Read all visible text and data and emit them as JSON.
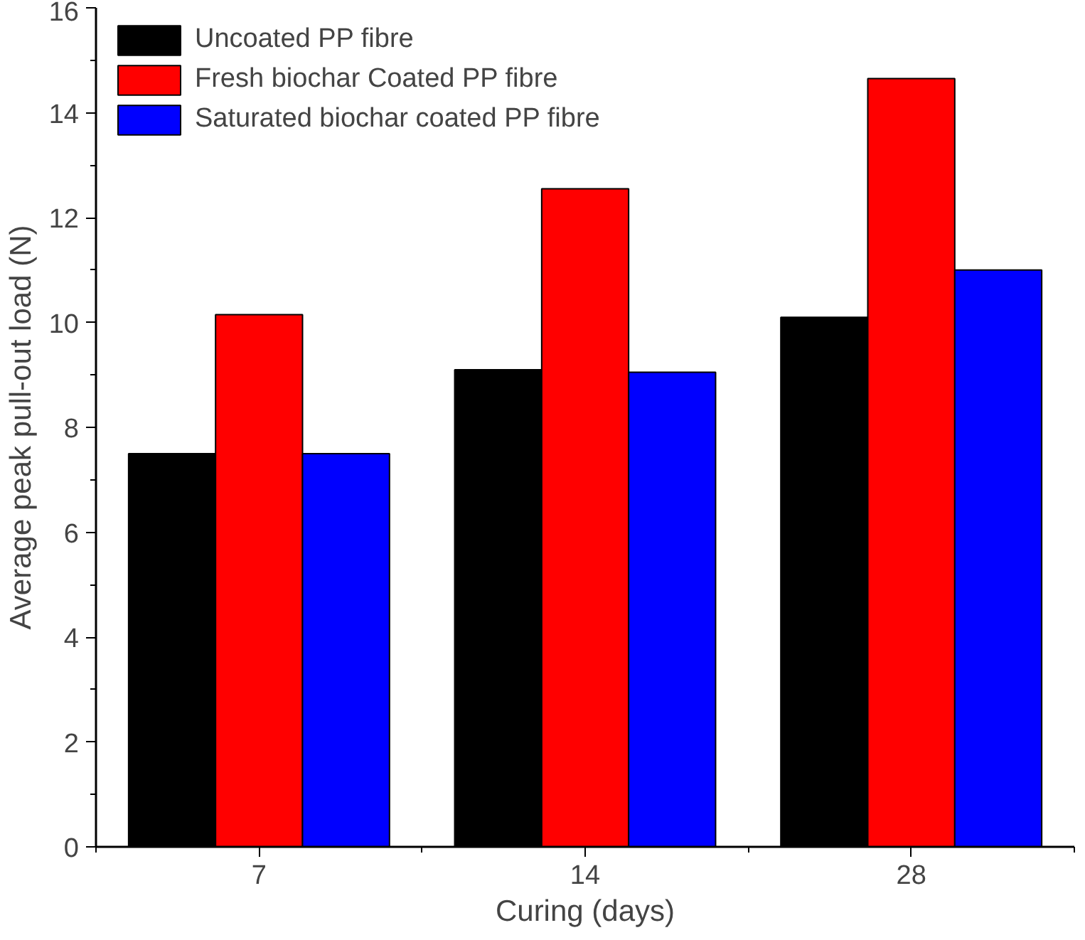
{
  "chart_data": {
    "type": "bar",
    "xlabel": "Curing (days)",
    "ylabel": "Average peak pull-out load (N)",
    "categories": [
      "7",
      "14",
      "28"
    ],
    "series": [
      {
        "name": "Uncoated PP fibre",
        "color": "#000000",
        "values": [
          7.5,
          9.1,
          10.1
        ]
      },
      {
        "name": "Fresh biochar Coated PP fibre",
        "color": "#ff0000",
        "values": [
          10.15,
          12.55,
          14.65
        ]
      },
      {
        "name": "Saturated biochar coated PP fibre",
        "color": "#0000ff",
        "values": [
          7.5,
          9.05,
          11.0
        ]
      }
    ],
    "ylim": [
      0,
      16
    ],
    "yticks": [
      0,
      2,
      4,
      6,
      8,
      10,
      12,
      14,
      16
    ],
    "grid": false,
    "legend": "top left"
  }
}
